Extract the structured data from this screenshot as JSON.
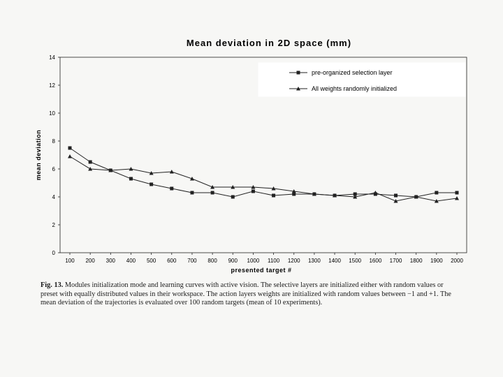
{
  "chart_data": {
    "type": "line",
    "title": "Mean deviation in 2D space (mm)",
    "xlabel": "presented target #",
    "ylabel": "mean deviation",
    "categories": [
      "100",
      "200",
      "300",
      "400",
      "500",
      "600",
      "700",
      "800",
      "900",
      "1000",
      "1100",
      "1200",
      "1300",
      "1400",
      "1500",
      "1600",
      "1700",
      "1800",
      "1900",
      "2000"
    ],
    "ylim": [
      0,
      14
    ],
    "yticks": [
      "0",
      "2",
      "4",
      "6",
      "8",
      "10",
      "12",
      "14"
    ],
    "grid": false,
    "legend_position": "top-right",
    "series": [
      {
        "name": "pre-organized selection layer",
        "marker": "square",
        "values": [
          7.5,
          6.5,
          5.9,
          5.3,
          4.9,
          4.6,
          4.3,
          4.3,
          4.0,
          4.4,
          4.1,
          4.2,
          4.2,
          4.1,
          4.2,
          4.2,
          4.1,
          4.0,
          4.3,
          4.3
        ]
      },
      {
        "name": "All weights randomly initialized",
        "marker": "triangle",
        "values": [
          6.9,
          6.0,
          5.9,
          6.0,
          5.7,
          5.8,
          5.3,
          4.7,
          4.7,
          4.7,
          4.6,
          4.4,
          4.2,
          4.1,
          4.0,
          4.3,
          3.7,
          4.0,
          3.7,
          3.9
        ]
      }
    ]
  },
  "caption": {
    "label": "Fig. 13.",
    "text": "Modules initialization mode and learning curves with active vision. The selective layers are initialized either with random values or preset with equally distributed values in their workspace. The action layers weights are initialized with random values between −1 and +1. The mean deviation of the trajectories is evaluated over 100 random targets (mean of 10 experiments)."
  }
}
